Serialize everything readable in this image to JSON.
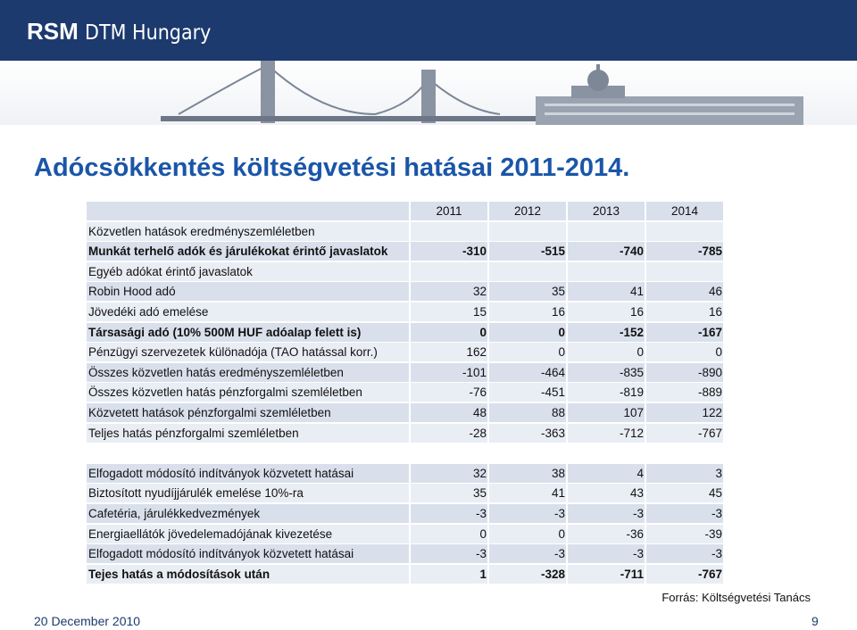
{
  "header": {
    "logo_bold": "RSM",
    "logo_rest": "DTM Hungary"
  },
  "title": "Adócsökkentés költségvetési hatásai 2011-2014.",
  "table": {
    "columns": [
      "2011",
      "2012",
      "2013",
      "2014"
    ],
    "sections": [
      {
        "rows": [
          {
            "label": "Közvetlen hatások eredményszemléletben"
          },
          {
            "label": "Munkát terhelő adók és járulékokat érintő javaslatok",
            "values": [
              -310,
              -515,
              -740,
              -785
            ],
            "bold": true
          },
          {
            "label": "Egyéb adókat érintő javaslatok"
          },
          {
            "label": "Robin Hood adó",
            "values": [
              32,
              35,
              41,
              46
            ]
          },
          {
            "label": "Jövedéki adó emelése",
            "values": [
              15,
              16,
              16,
              16
            ]
          },
          {
            "label": "Társasági adó (10% 500M HUF adóalap felett is)",
            "values": [
              0,
              0,
              -152,
              -167
            ],
            "bold": true
          },
          {
            "label": "Pénzügyi szervezetek különadója (TAO hatással korr.)",
            "values": [
              162,
              0,
              0,
              0
            ]
          },
          {
            "label": "Összes közvetlen hatás eredményszemléletben",
            "values": [
              -101,
              -464,
              -835,
              -890
            ]
          },
          {
            "label": "Összes közvetlen hatás pénzforgalmi szemléletben",
            "values": [
              -76,
              -451,
              -819,
              -889
            ]
          },
          {
            "label": "Közvetett hatások  pénzforgalmi szemléletben",
            "values": [
              48,
              88,
              107,
              122
            ]
          },
          {
            "label": "Teljes hatás pénzforgalmi szemléletben",
            "values": [
              -28,
              -363,
              -712,
              -767
            ]
          }
        ]
      },
      {
        "rows": [
          {
            "label": "Elfogadott módosító indítványok közvetett hatásai",
            "values": [
              32,
              38,
              4,
              3
            ]
          },
          {
            "label": "Biztosított nyudíjjárulék emelése 10%-ra",
            "values": [
              35,
              41,
              43,
              45
            ]
          },
          {
            "label": "Cafetéria, járulékkedvezmények",
            "values": [
              -3,
              -3,
              -3,
              -3
            ]
          },
          {
            "label": "Energiaellátók jövedelemadójának kivezetése",
            "values": [
              0,
              0,
              -36,
              -39
            ]
          },
          {
            "label": "Elfogadott módosító indítványok közvetett hatásai",
            "values": [
              -3,
              -3,
              -3,
              -3
            ]
          },
          {
            "label": "Tejes hatás a módosítások után",
            "values": [
              1,
              -328,
              -711,
              -767
            ],
            "bold": true
          }
        ]
      }
    ]
  },
  "source": "Forrás: Költségvetési Tanács",
  "footer": {
    "date": "20 December 2010",
    "page": "9"
  }
}
